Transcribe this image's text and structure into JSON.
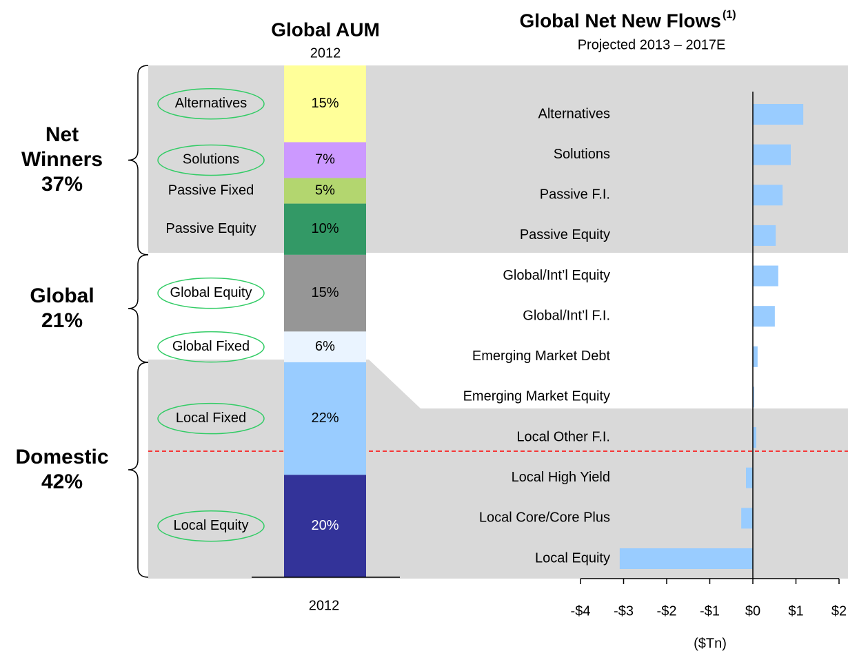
{
  "chart_data": [
    {
      "type": "stacked_bar",
      "title": "Global AUM",
      "subtitle": "2012",
      "categories": [
        "2012"
      ],
      "series": [
        {
          "name": "Alternatives",
          "color": "#ffff99",
          "values": [
            15
          ],
          "value_labels": [
            "15%"
          ],
          "circled": true
        },
        {
          "name": "Solutions",
          "color": "#cc99ff",
          "values": [
            7
          ],
          "value_labels": [
            "7%"
          ],
          "circled": true
        },
        {
          "name": "Passive Fixed",
          "color": "#b3d66f",
          "values": [
            5
          ],
          "value_labels": [
            "5%"
          ],
          "circled": false
        },
        {
          "name": "Passive Equity",
          "color": "#339966",
          "values": [
            10
          ],
          "value_labels": [
            "10%"
          ],
          "circled": false
        },
        {
          "name": "Global Equity",
          "color": "#969696",
          "values": [
            15
          ],
          "value_labels": [
            "15%"
          ],
          "circled": true
        },
        {
          "name": "Global Fixed",
          "color": "#eaf4ff",
          "values": [
            6
          ],
          "value_labels": [
            "6%"
          ],
          "circled": true
        },
        {
          "name": "Local Fixed",
          "color": "#99ccff",
          "values": [
            22
          ],
          "value_labels": [
            "22%"
          ],
          "circled": true
        },
        {
          "name": "Local Equity",
          "color": "#333399",
          "values": [
            20
          ],
          "value_labels": [
            "20%"
          ],
          "circled": true
        }
      ],
      "groups": [
        {
          "name": "Net Winners",
          "value": 37,
          "value_label": "37%"
        },
        {
          "name": "Global",
          "value": 21,
          "value_label": "21%"
        },
        {
          "name": "Domestic",
          "value": 42,
          "value_label": "42%"
        }
      ]
    },
    {
      "type": "hbar",
      "title": "Global Net New Flows",
      "title_note": "(1)",
      "subtitle": "Projected 2013 – 2017E",
      "categories": [
        "Alternatives",
        "Solutions",
        "Passive F.I.",
        "Passive Equity",
        "Global/Int’l Equity",
        "Global/Int’l F.I.",
        "Emerging Market Debt",
        "Emerging Market Equity",
        "Local Other F.I.",
        "Local High Yield",
        "Local Core/Core Plus",
        "Local Equity"
      ],
      "values": [
        1.17,
        0.88,
        0.69,
        0.53,
        0.59,
        0.51,
        0.11,
        0.03,
        0.08,
        -0.16,
        -0.27,
        -3.09
      ],
      "color": "#99ccff",
      "xlabel": "($Tn)",
      "xlim": [
        -4,
        2
      ],
      "xticks": [
        {
          "value": -4,
          "label": "-$4"
        },
        {
          "value": -3,
          "label": "-$3"
        },
        {
          "value": -2,
          "label": "-$2"
        },
        {
          "value": -1,
          "label": "-$1"
        },
        {
          "value": 0,
          "label": "$0"
        },
        {
          "value": 1,
          "label": "$1"
        },
        {
          "value": 2,
          "label": "$2"
        }
      ]
    }
  ]
}
